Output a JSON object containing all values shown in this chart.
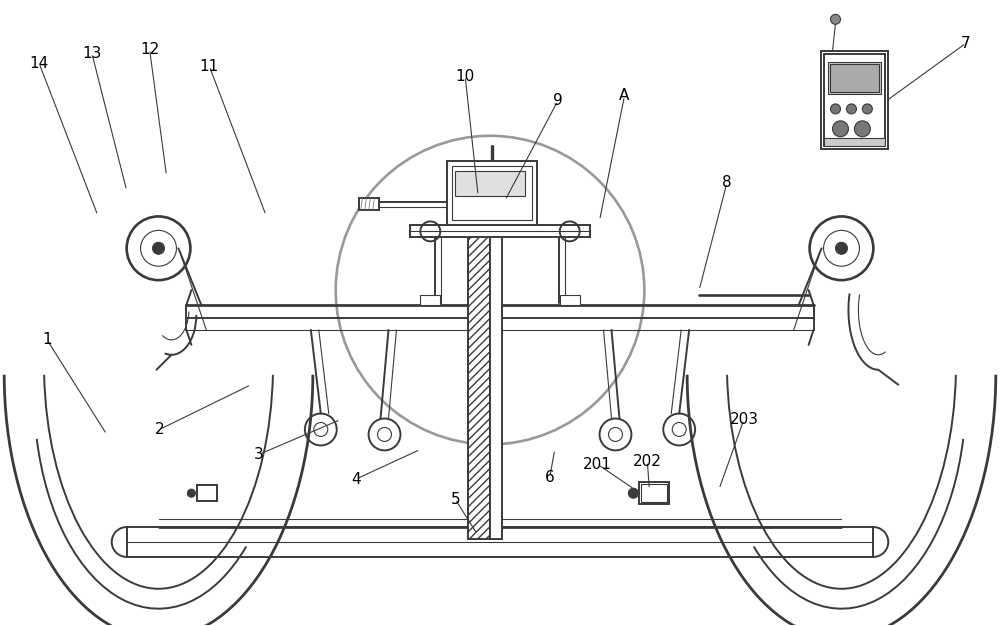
{
  "fig_width": 10.0,
  "fig_height": 6.26,
  "dpi": 100,
  "bg_color": "#ffffff",
  "line_color": "#3a3a3a",
  "lw_main": 1.4,
  "lw_thin": 0.8,
  "lw_thick": 2.0
}
